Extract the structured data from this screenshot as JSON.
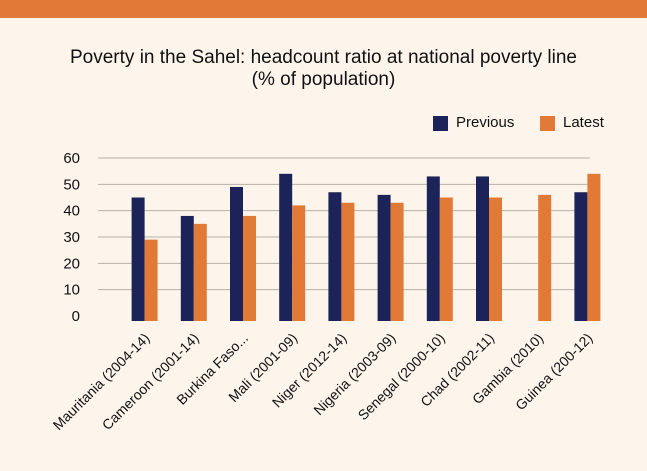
{
  "chart_data": {
    "type": "bar",
    "title": "Poverty in the Sahel: headcount ratio at national poverty line",
    "subtitle": "(% of population)",
    "categories": [
      "Mauritania (2004-14)",
      "Cameroon (2001-14)",
      "Burkina Faso...",
      "Mali (2001-09)",
      "Niger (2012-14)",
      "Nigeria (2003-09)",
      "Senegal (2000-10)",
      "Chad (2002-11)",
      "Gambia (2010)",
      "Guinea (200-12)"
    ],
    "series": [
      {
        "name": "Previous",
        "color": "#1c2359",
        "values": [
          45,
          38,
          49,
          54,
          47,
          46,
          53,
          53,
          null,
          47
        ]
      },
      {
        "name": "Latest",
        "color": "#e07a36",
        "values": [
          29,
          35,
          38,
          42,
          43,
          43,
          45,
          45,
          46,
          54
        ]
      }
    ],
    "ylim": [
      0,
      60
    ],
    "yticks": [
      "0",
      "10",
      "20",
      "30",
      "40",
      "50",
      "60"
    ],
    "grid": true,
    "legend_position": "top-right"
  },
  "colors": {
    "accent_bar": "#e07a36",
    "background": "#fdf5ec",
    "gridline": "#b8b0a6"
  }
}
